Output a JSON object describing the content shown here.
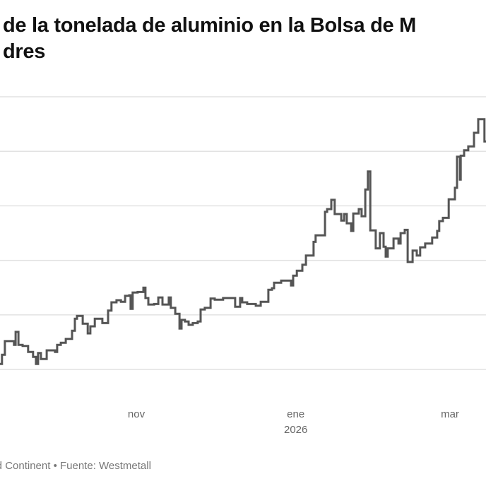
{
  "title_line1": "de la tonelada de aluminio en la Bolsa de M",
  "title_line2": "dres",
  "footer": "and Continent • Fuente: Westmetall",
  "chart_data": {
    "type": "line",
    "step": true,
    "x_unit": "days since 1 Nov 2025",
    "y_unit": "gridline steps (y labels not visible)",
    "ylim": [
      0,
      5
    ],
    "gridlines": [
      0,
      1,
      2,
      3,
      4,
      5
    ],
    "line_color": "#555555",
    "x_ticks": [
      {
        "day": 0,
        "label": "nov",
        "sublabel": ""
      },
      {
        "day": 61,
        "label": "ene",
        "sublabel": "2026"
      },
      {
        "day": 120,
        "label": "mar",
        "sublabel": ""
      }
    ],
    "points": [
      [
        -52.2,
        0.1
      ],
      [
        -51.4,
        0.27
      ],
      [
        -50.3,
        0.52
      ],
      [
        -46.8,
        0.45
      ],
      [
        -46.2,
        0.69
      ],
      [
        -45.1,
        0.45
      ],
      [
        -43.5,
        0.43
      ],
      [
        -41.4,
        0.32
      ],
      [
        -39.5,
        0.23
      ],
      [
        -38.4,
        0.1
      ],
      [
        -37.6,
        0.3
      ],
      [
        -36.5,
        0.19
      ],
      [
        -34.3,
        0.35
      ],
      [
        -31.1,
        0.32
      ],
      [
        -30.3,
        0.45
      ],
      [
        -28.9,
        0.49
      ],
      [
        -27.0,
        0.56
      ],
      [
        -24.6,
        0.71
      ],
      [
        -23.5,
        0.93
      ],
      [
        -22.7,
        0.98
      ],
      [
        -20.5,
        0.84
      ],
      [
        -18.6,
        0.66
      ],
      [
        -17.6,
        0.79
      ],
      [
        -15.9,
        0.93
      ],
      [
        -13.0,
        0.85
      ],
      [
        -10.8,
        1.08
      ],
      [
        -9.5,
        1.23
      ],
      [
        -7.6,
        1.27
      ],
      [
        -5.9,
        1.24
      ],
      [
        -4.3,
        1.35
      ],
      [
        -2.7,
        1.36
      ],
      [
        -2.2,
        1.11
      ],
      [
        -1.4,
        1.41
      ],
      [
        0.5,
        1.42
      ],
      [
        2.7,
        1.5
      ],
      [
        3.5,
        1.31
      ],
      [
        4.6,
        1.19
      ],
      [
        6.8,
        1.2
      ],
      [
        8.4,
        1.32
      ],
      [
        10.0,
        1.19
      ],
      [
        12.4,
        1.32
      ],
      [
        13.2,
        1.13
      ],
      [
        14.9,
        1.02
      ],
      [
        16.5,
        0.75
      ],
      [
        17.3,
        0.91
      ],
      [
        18.6,
        0.88
      ],
      [
        20.0,
        0.82
      ],
      [
        21.6,
        0.85
      ],
      [
        23.5,
        0.88
      ],
      [
        24.6,
        1.1
      ],
      [
        26.2,
        1.13
      ],
      [
        28.4,
        1.3
      ],
      [
        30.0,
        1.28
      ],
      [
        33.2,
        1.31
      ],
      [
        37.8,
        1.15
      ],
      [
        39.7,
        1.31
      ],
      [
        40.5,
        1.23
      ],
      [
        42.4,
        1.2
      ],
      [
        45.7,
        1.17
      ],
      [
        47.6,
        1.24
      ],
      [
        50.5,
        1.46
      ],
      [
        51.9,
        1.49
      ],
      [
        52.7,
        1.59
      ],
      [
        55.4,
        1.63
      ],
      [
        59.2,
        1.54
      ],
      [
        60.0,
        1.72
      ],
      [
        61.4,
        1.81
      ],
      [
        63.5,
        1.92
      ],
      [
        64.9,
        2.09
      ],
      [
        67.8,
        2.34
      ],
      [
        68.6,
        2.46
      ],
      [
        72.2,
        2.89
      ],
      [
        73.0,
        2.94
      ],
      [
        74.6,
        3.11
      ],
      [
        75.9,
        2.85
      ],
      [
        78.4,
        2.73
      ],
      [
        79.5,
        2.85
      ],
      [
        80.5,
        2.68
      ],
      [
        82.2,
        2.54
      ],
      [
        83.0,
        2.86
      ],
      [
        85.1,
        2.94
      ],
      [
        86.2,
        2.81
      ],
      [
        87.6,
        3.3
      ],
      [
        88.6,
        3.63
      ],
      [
        89.5,
        2.55
      ],
      [
        91.6,
        2.22
      ],
      [
        93.2,
        2.5
      ],
      [
        94.6,
        2.25
      ],
      [
        95.4,
        2.07
      ],
      [
        96.2,
        2.22
      ],
      [
        98.4,
        2.4
      ],
      [
        100.3,
        2.31
      ],
      [
        101.1,
        2.5
      ],
      [
        102.7,
        2.56
      ],
      [
        103.8,
        1.97
      ],
      [
        105.7,
        2.18
      ],
      [
        107.3,
        2.09
      ],
      [
        108.6,
        2.24
      ],
      [
        110.5,
        2.31
      ],
      [
        113.2,
        2.42
      ],
      [
        115.1,
        2.54
      ],
      [
        115.9,
        2.72
      ],
      [
        117.3,
        2.78
      ],
      [
        119.5,
        3.12
      ],
      [
        121.9,
        3.33
      ],
      [
        122.7,
        3.9
      ],
      [
        123.8,
        3.48
      ],
      [
        124.1,
        3.92
      ],
      [
        125.4,
        4.02
      ],
      [
        127.0,
        4.09
      ],
      [
        129.2,
        4.34
      ],
      [
        130.8,
        4.59
      ],
      [
        133.2,
        4.18
      ],
      [
        133.8,
        4.18
      ]
    ]
  }
}
